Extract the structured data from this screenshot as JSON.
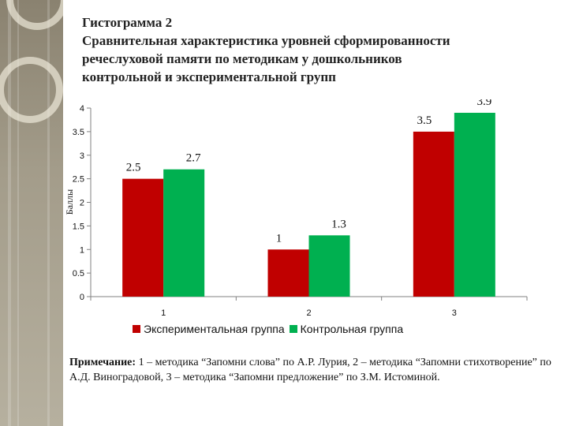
{
  "title_lines": [
    "Гистограмма 2",
    "Сравнительная характеристика уровней сформированности",
    "речеслуховой памяти по методикам у дошкольников",
    "контрольной и экспериментальной групп"
  ],
  "colors": {
    "experimental": "#c00000",
    "control": "#00b050",
    "axis": "#808080",
    "text": "#111111"
  },
  "chart_data": {
    "type": "bar",
    "categories": [
      "1",
      "2",
      "3"
    ],
    "series": [
      {
        "name": "Экспериментальная группа",
        "values": [
          2.5,
          1,
          3.5
        ],
        "labels": [
          "2.5",
          "1",
          "3.5"
        ]
      },
      {
        "name": "Контрольная группа",
        "values": [
          2.7,
          1.3,
          3.9
        ],
        "labels": [
          "2.7",
          "1.3",
          "3.9"
        ]
      }
    ],
    "ylabel": "Баллы",
    "xlabel": "",
    "ylim": [
      0,
      4
    ],
    "yticks": [
      "0",
      "0.5",
      "1",
      "1.5",
      "2",
      "2.5",
      "3",
      "3.5",
      "4"
    ],
    "legend_position": "bottom",
    "grid": false
  },
  "note": {
    "prefix": "Примечание:",
    "text": " 1 – методика “Запомни слова” по А.Р. Лурия, 2 – методика “Запомни стихотворение” по А.Д. Виноградовой, 3 – методика “Запомни предложение” по З.М. Истоминой."
  }
}
